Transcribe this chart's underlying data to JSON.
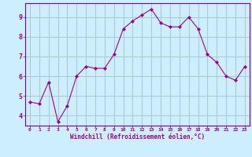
{
  "x": [
    0,
    1,
    2,
    3,
    4,
    5,
    6,
    7,
    8,
    9,
    10,
    11,
    12,
    13,
    14,
    15,
    16,
    17,
    18,
    19,
    20,
    21,
    22,
    23
  ],
  "y": [
    4.7,
    4.6,
    5.7,
    3.7,
    4.5,
    6.0,
    6.5,
    6.4,
    6.4,
    7.1,
    8.4,
    8.8,
    9.1,
    9.4,
    8.7,
    8.5,
    8.5,
    9.0,
    8.4,
    7.1,
    6.7,
    6.0,
    5.8,
    6.5
  ],
  "line_color": "#990099",
  "marker": "D",
  "marker_size": 2.0,
  "bg_color": "#cceeff",
  "grid_color": "#aacccc",
  "xlabel": "Windchill (Refroidissement éolien,°C)",
  "xlabel_color": "#990099",
  "tick_color": "#990099",
  "ylabel_ticks": [
    4,
    5,
    6,
    7,
    8,
    9
  ],
  "xlim": [
    -0.5,
    23.5
  ],
  "ylim": [
    3.5,
    9.7
  ],
  "spine_color": "#7700aa"
}
